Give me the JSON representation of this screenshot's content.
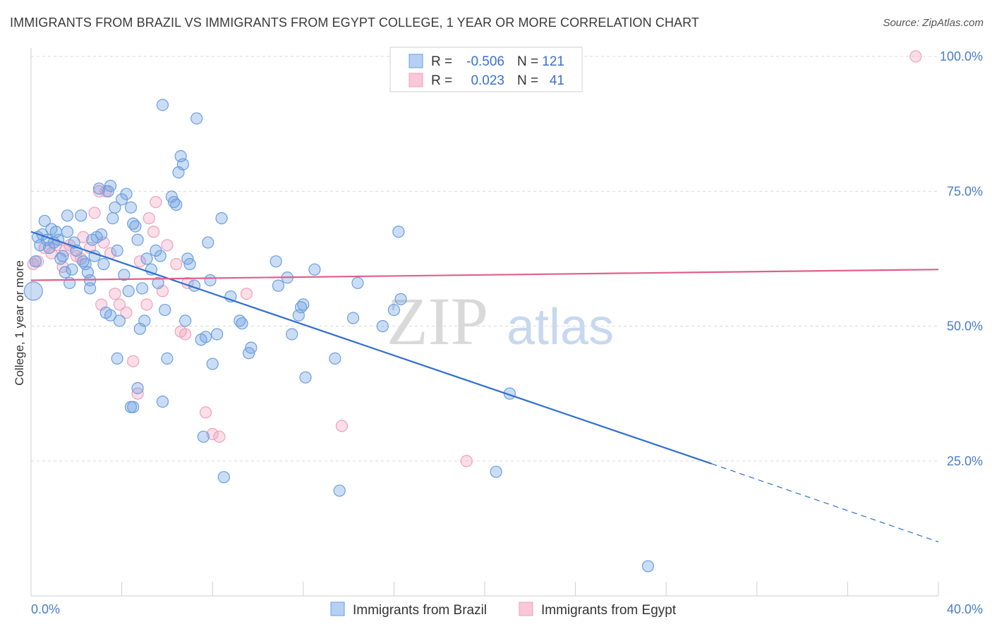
{
  "title": "IMMIGRANTS FROM BRAZIL VS IMMIGRANTS FROM EGYPT COLLEGE, 1 YEAR OR MORE CORRELATION CHART",
  "source": "Source: ZipAtlas.com",
  "watermark": {
    "zip": "ZIP",
    "atlas": "atlas"
  },
  "legend": {
    "rows": [
      {
        "r_label": "R =",
        "r_value": "-0.506",
        "n_label": "N =",
        "n_value": "121"
      },
      {
        "r_label": "R =",
        "r_value": "0.023",
        "n_label": "N =",
        "n_value": "41"
      }
    ]
  },
  "bottom_legend": [
    "Immigrants from Brazil",
    "Immigrants from Egypt"
  ],
  "colors": {
    "brazil": "#6a9fe0",
    "brazil_line": "#2f6fcf",
    "egypt": "#f0a0bc",
    "egypt_line": "#e0608a",
    "grid": "#d9d9d9",
    "tick_label": "#4a7cc9"
  },
  "chart_data": {
    "type": "scatter",
    "xlabel": "",
    "ylabel": "College, 1 year or more",
    "xlim": [
      0,
      40
    ],
    "ylim": [
      0,
      105
    ],
    "x_tick_labels": [
      {
        "value": 0,
        "label": "0.0%"
      },
      {
        "value": 40,
        "label": "40.0%"
      }
    ],
    "y_tick_labels": [
      {
        "value": 25,
        "label": "25.0%"
      },
      {
        "value": 50,
        "label": "50.0%"
      },
      {
        "value": 75,
        "label": "75.0%"
      },
      {
        "value": 100,
        "label": "100.0%"
      }
    ],
    "grid": "horizontal dashed",
    "series": [
      {
        "name": "Immigrants from Brazil",
        "r": -0.506,
        "n": 121,
        "trend": {
          "x0": 0,
          "y0": 67.5,
          "x1": 30,
          "y1": 24.5,
          "x_dash_end": 40,
          "y_dash_end": 10
        },
        "points": [
          [
            0.1,
            56.5
          ],
          [
            0.2,
            62
          ],
          [
            0.3,
            66.5
          ],
          [
            0.4,
            65
          ],
          [
            0.5,
            67
          ],
          [
            0.6,
            69.5
          ],
          [
            0.7,
            66
          ],
          [
            0.8,
            64.5
          ],
          [
            0.9,
            68
          ],
          [
            1.0,
            65.5
          ],
          [
            1.1,
            67.5
          ],
          [
            1.2,
            66
          ],
          [
            1.3,
            62.5
          ],
          [
            1.4,
            63
          ],
          [
            1.5,
            60
          ],
          [
            1.6,
            70.5
          ],
          [
            1.7,
            58
          ],
          [
            1.8,
            60.5
          ],
          [
            1.9,
            65.5
          ],
          [
            2.0,
            64
          ],
          [
            2.2,
            70.5
          ],
          [
            2.3,
            62
          ],
          [
            2.4,
            61.5
          ],
          [
            2.5,
            60
          ],
          [
            2.6,
            58.5
          ],
          [
            2.7,
            66
          ],
          [
            2.8,
            63
          ],
          [
            2.9,
            66.5
          ],
          [
            3.0,
            75.5
          ],
          [
            3.1,
            67
          ],
          [
            3.2,
            61.5
          ],
          [
            3.3,
            52.5
          ],
          [
            3.4,
            75
          ],
          [
            3.5,
            76
          ],
          [
            3.6,
            70
          ],
          [
            3.7,
            72
          ],
          [
            3.8,
            64
          ],
          [
            3.9,
            51
          ],
          [
            4.0,
            73.5
          ],
          [
            4.1,
            59.5
          ],
          [
            4.2,
            74.5
          ],
          [
            4.3,
            56.5
          ],
          [
            4.4,
            72
          ],
          [
            4.5,
            69
          ],
          [
            4.6,
            68.5
          ],
          [
            4.7,
            66
          ],
          [
            4.8,
            49.5
          ],
          [
            4.9,
            57
          ],
          [
            5.0,
            51
          ],
          [
            5.1,
            62.5
          ],
          [
            5.3,
            60.5
          ],
          [
            5.5,
            64
          ],
          [
            5.6,
            58
          ],
          [
            5.7,
            63
          ],
          [
            5.8,
            91
          ],
          [
            5.9,
            53
          ],
          [
            6.0,
            44
          ],
          [
            6.2,
            74
          ],
          [
            6.3,
            73
          ],
          [
            6.4,
            72.5
          ],
          [
            6.5,
            78.5
          ],
          [
            6.6,
            81.5
          ],
          [
            6.7,
            80
          ],
          [
            6.8,
            51
          ],
          [
            6.9,
            62.5
          ],
          [
            7.0,
            61.5
          ],
          [
            7.2,
            57.5
          ],
          [
            7.3,
            88.5
          ],
          [
            7.5,
            47.5
          ],
          [
            7.6,
            29.5
          ],
          [
            7.8,
            65.5
          ],
          [
            7.9,
            58.5
          ],
          [
            8.0,
            43
          ],
          [
            8.2,
            48.5
          ],
          [
            8.4,
            70
          ],
          [
            8.5,
            22
          ],
          [
            8.8,
            55.5
          ],
          [
            9.2,
            51
          ],
          [
            9.3,
            50.5
          ],
          [
            9.6,
            45
          ],
          [
            10.8,
            62
          ],
          [
            10.9,
            57.5
          ],
          [
            11.3,
            59
          ],
          [
            11.8,
            52
          ],
          [
            11.9,
            53.5
          ],
          [
            12.0,
            54
          ],
          [
            12.1,
            40.5
          ],
          [
            12.5,
            60.5
          ],
          [
            13.4,
            44
          ],
          [
            13.6,
            19.5
          ],
          [
            14.2,
            51.5
          ],
          [
            14.4,
            58
          ],
          [
            15.5,
            50
          ],
          [
            16.0,
            53
          ],
          [
            16.2,
            67.5
          ],
          [
            16.3,
            55
          ],
          [
            20.5,
            23
          ],
          [
            21.1,
            37.5
          ],
          [
            27.2,
            5.5
          ],
          [
            3.5,
            52
          ],
          [
            1.6,
            67.5
          ],
          [
            2.6,
            57
          ],
          [
            3.8,
            44
          ],
          [
            4.7,
            38.5
          ],
          [
            4.4,
            35
          ],
          [
            4.5,
            35
          ],
          [
            5.8,
            36
          ],
          [
            7.7,
            48
          ],
          [
            9.7,
            46
          ],
          [
            11.5,
            48.5
          ]
        ]
      },
      {
        "name": "Immigrants from Egypt",
        "r": 0.023,
        "n": 41,
        "trend": {
          "x0": 0,
          "y0": 58.5,
          "x1": 40,
          "y1": 60.5
        },
        "points": [
          [
            0.1,
            61.5
          ],
          [
            0.3,
            62
          ],
          [
            0.6,
            64.5
          ],
          [
            0.9,
            63.5
          ],
          [
            1.1,
            65
          ],
          [
            1.4,
            61
          ],
          [
            1.7,
            65
          ],
          [
            2.0,
            63
          ],
          [
            2.3,
            66.5
          ],
          [
            2.6,
            64.5
          ],
          [
            2.8,
            71
          ],
          [
            3.0,
            75
          ],
          [
            3.2,
            65.5
          ],
          [
            3.3,
            75
          ],
          [
            3.5,
            63.5
          ],
          [
            3.7,
            56
          ],
          [
            3.9,
            54
          ],
          [
            4.2,
            52.5
          ],
          [
            4.5,
            43.5
          ],
          [
            4.7,
            37.5
          ],
          [
            5.1,
            54
          ],
          [
            5.2,
            70
          ],
          [
            5.4,
            67.5
          ],
          [
            5.5,
            73
          ],
          [
            5.8,
            56.5
          ],
          [
            6.0,
            65
          ],
          [
            6.4,
            61.5
          ],
          [
            6.6,
            49
          ],
          [
            6.8,
            48.5
          ],
          [
            7.7,
            34
          ],
          [
            8.0,
            30
          ],
          [
            8.3,
            29.5
          ],
          [
            9.5,
            56
          ],
          [
            13.7,
            31.5
          ],
          [
            19.2,
            25
          ],
          [
            39.0,
            100
          ],
          [
            3.1,
            54
          ],
          [
            4.8,
            62
          ],
          [
            2.2,
            62.5
          ],
          [
            1.5,
            64
          ],
          [
            6.9,
            58
          ]
        ]
      }
    ]
  }
}
